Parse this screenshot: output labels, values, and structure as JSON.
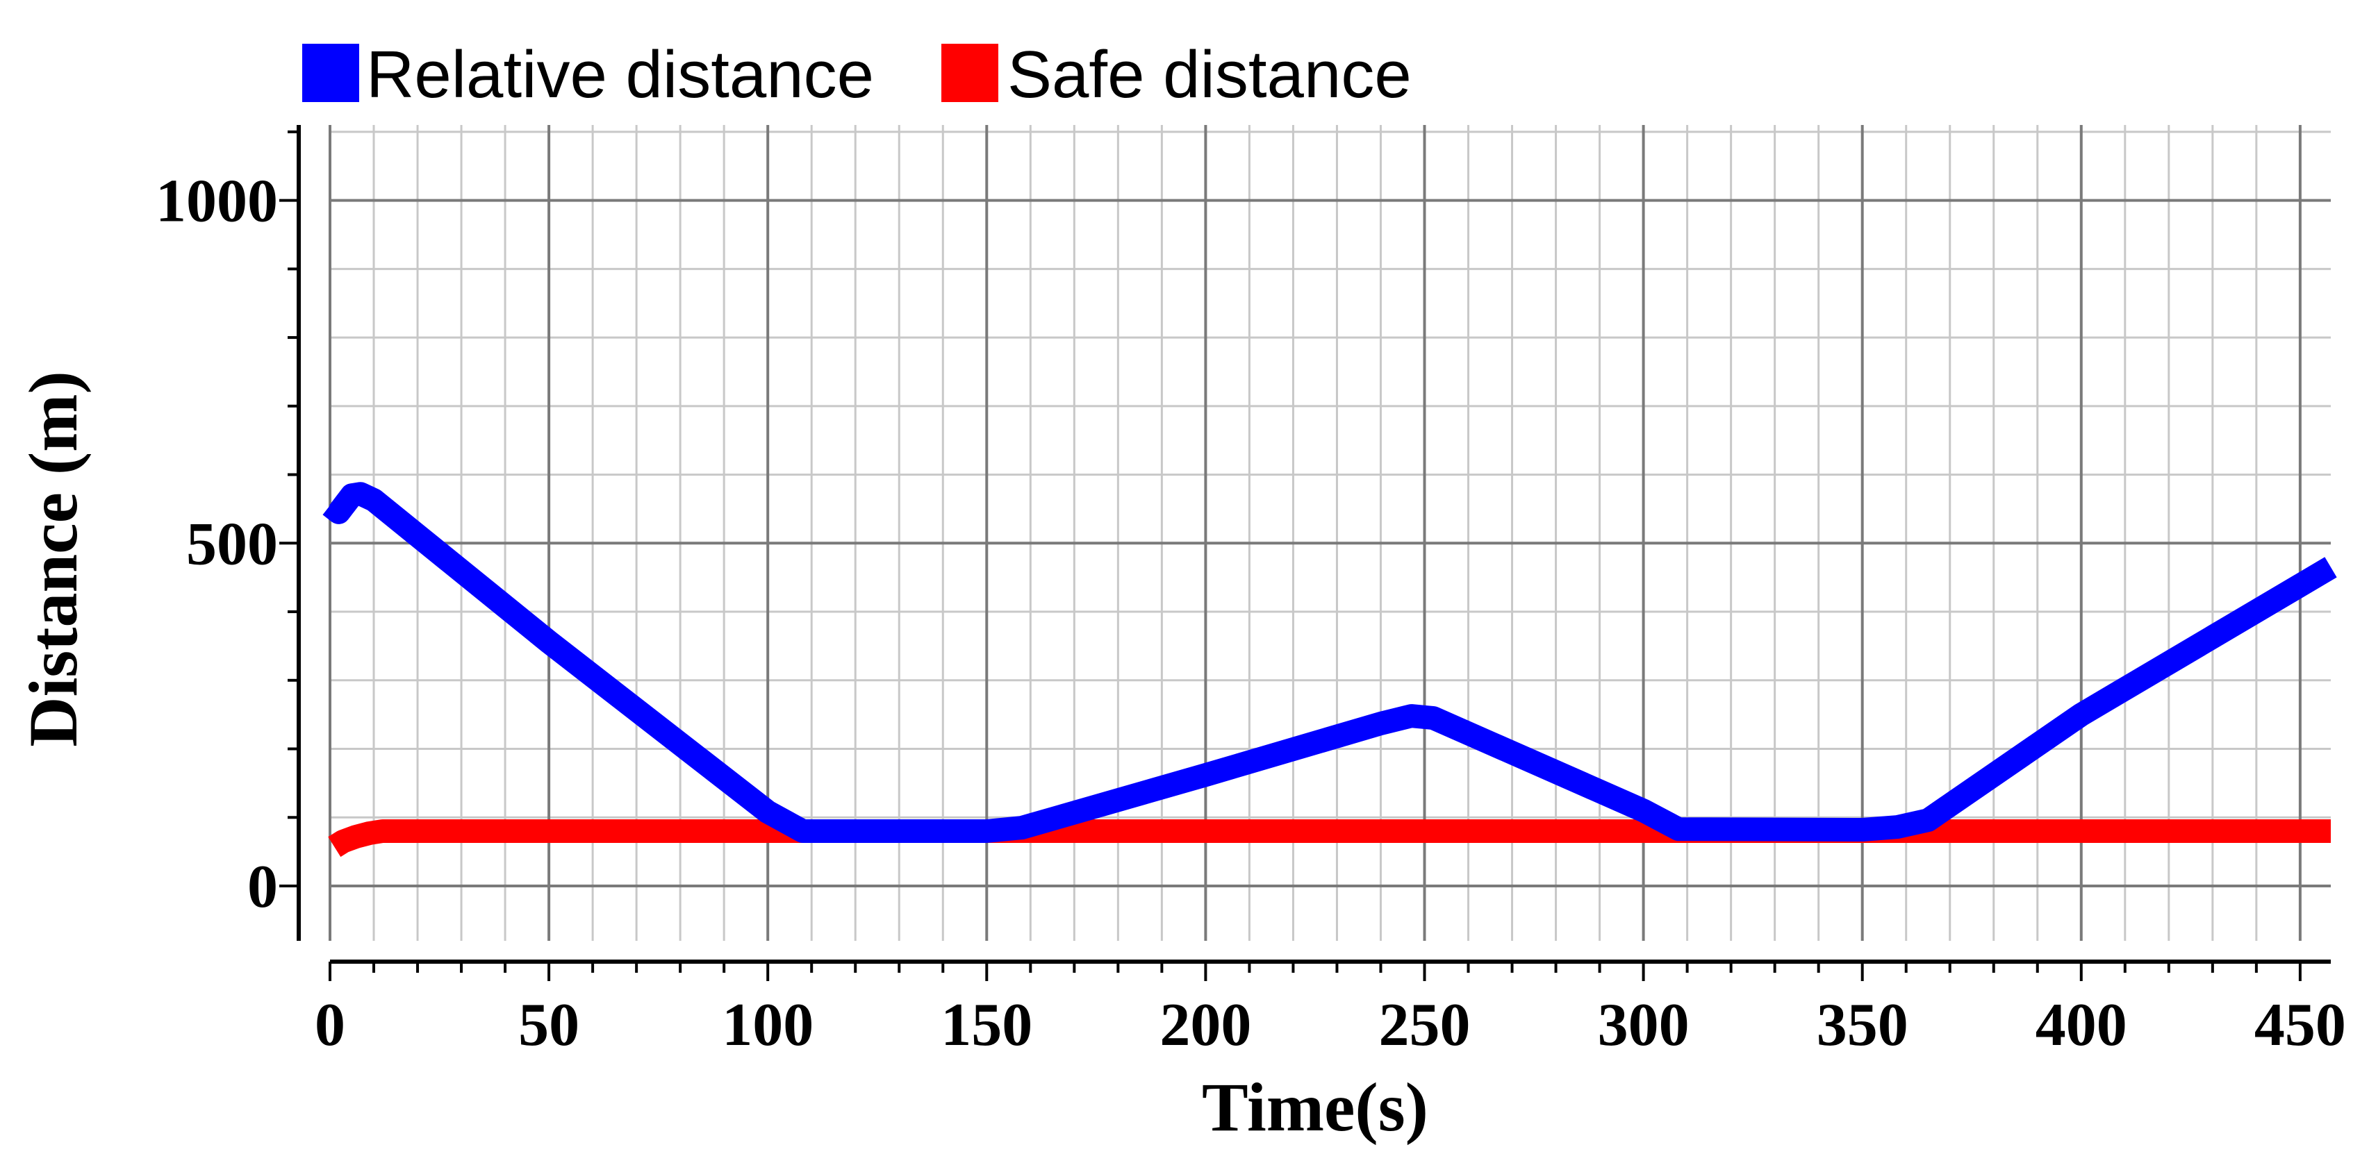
{
  "chart_data": {
    "type": "line",
    "title": "",
    "xlabel": "Time(s)",
    "ylabel": "Distance (m)",
    "xlim": [
      0,
      457
    ],
    "ylim": [
      -80,
      1110
    ],
    "xticks": [
      0,
      50,
      100,
      150,
      200,
      250,
      300,
      350,
      400,
      450
    ],
    "yticks": [
      0,
      500,
      1000
    ],
    "x_minor_step": 10,
    "y_minor_step": 100,
    "grid": true,
    "legend_position": "top-left",
    "series": [
      {
        "name": "Relative distance",
        "color": "#0000ff",
        "points": [
          [
            0,
            555
          ],
          [
            2,
            545
          ],
          [
            5,
            570
          ],
          [
            7,
            572
          ],
          [
            10,
            563
          ],
          [
            50,
            356
          ],
          [
            100,
            108
          ],
          [
            108,
            80
          ],
          [
            150,
            80
          ],
          [
            158,
            85
          ],
          [
            200,
            162
          ],
          [
            240,
            237
          ],
          [
            247,
            248
          ],
          [
            252,
            245
          ],
          [
            300,
            110
          ],
          [
            308,
            83
          ],
          [
            350,
            82
          ],
          [
            358,
            86
          ],
          [
            365,
            96
          ],
          [
            400,
            250
          ],
          [
            457,
            465
          ]
        ]
      },
      {
        "name": "Safe distance",
        "color": "#ff0000",
        "points": [
          [
            1,
            57
          ],
          [
            3,
            65
          ],
          [
            6,
            72
          ],
          [
            9,
            77
          ],
          [
            12,
            80
          ],
          [
            457,
            80
          ]
        ]
      }
    ]
  }
}
